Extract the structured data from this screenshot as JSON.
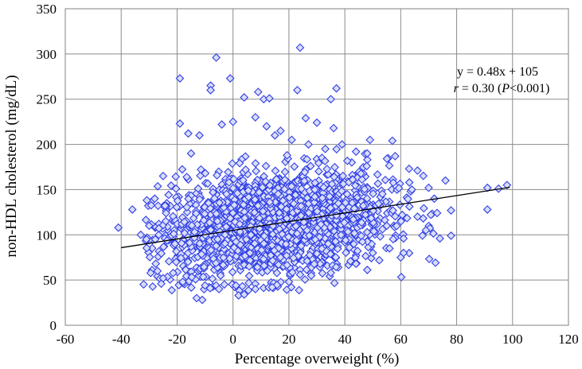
{
  "chart_data": {
    "type": "scatter",
    "title": "",
    "xlabel": "Percentage overweight (%)",
    "ylabel": "non-HDL cholesterol (mg/dL)",
    "xlim": [
      -60,
      120
    ],
    "ylim": [
      0,
      350
    ],
    "x_ticks": [
      "-60",
      "-40",
      "-20",
      "0",
      "20",
      "40",
      "60",
      "80",
      "100",
      "120"
    ],
    "y_ticks": [
      "0",
      "50",
      "100",
      "150",
      "200",
      "250",
      "300",
      "350"
    ],
    "grid": true,
    "marker": "diamond",
    "marker_color": "#2f3fe6",
    "line_color": "#000000",
    "annotation": {
      "equation": "y = 0.48x + 105",
      "r_symbol": "r",
      "r_text": " = 0.30 (",
      "p_symbol": "P",
      "p_text": "<0.001)"
    },
    "trendline": {
      "slope": 0.48,
      "intercept": 105,
      "x_range": [
        -40,
        99
      ]
    },
    "outliers": [
      {
        "x": -41,
        "y": 108
      },
      {
        "x": -36,
        "y": 128
      },
      {
        "x": -19,
        "y": 273
      },
      {
        "x": -8,
        "y": 265
      },
      {
        "x": -8,
        "y": 260
      },
      {
        "x": -6,
        "y": 296
      },
      {
        "x": -1,
        "y": 273
      },
      {
        "x": 24,
        "y": 307
      },
      {
        "x": 23,
        "y": 260
      },
      {
        "x": 37,
        "y": 262
      },
      {
        "x": 35,
        "y": 250
      },
      {
        "x": 9,
        "y": 258
      },
      {
        "x": 4,
        "y": 252
      },
      {
        "x": 11,
        "y": 250
      },
      {
        "x": 13,
        "y": 251
      },
      {
        "x": 26,
        "y": 229
      },
      {
        "x": 30,
        "y": 224
      },
      {
        "x": 36,
        "y": 218
      },
      {
        "x": 49,
        "y": 205
      },
      {
        "x": 57,
        "y": 204
      },
      {
        "x": -19,
        "y": 223
      },
      {
        "x": -16,
        "y": 212
      },
      {
        "x": -13,
        "y": 30
      },
      {
        "x": -11,
        "y": 28
      },
      {
        "x": 2,
        "y": 33
      },
      {
        "x": 4,
        "y": 34
      },
      {
        "x": 91,
        "y": 152
      },
      {
        "x": 95,
        "y": 151
      },
      {
        "x": 98,
        "y": 155
      },
      {
        "x": 91,
        "y": 128
      },
      {
        "x": 78,
        "y": 127
      },
      {
        "x": 78,
        "y": 99
      },
      {
        "x": 74,
        "y": 96
      },
      {
        "x": 69,
        "y": 105
      },
      {
        "x": 76,
        "y": 160
      },
      {
        "x": 72,
        "y": 140
      },
      {
        "x": 63,
        "y": 173
      },
      {
        "x": 66,
        "y": 171
      },
      {
        "x": 61,
        "y": 96
      },
      {
        "x": 60,
        "y": 75
      },
      {
        "x": 61,
        "y": 80
      },
      {
        "x": 48,
        "y": 190
      },
      {
        "x": 58,
        "y": 187
      },
      {
        "x": 64,
        "y": 150
      },
      {
        "x": 70,
        "y": 152
      },
      {
        "x": 55,
        "y": 110
      },
      {
        "x": 66,
        "y": 120
      },
      {
        "x": 39,
        "y": 200
      },
      {
        "x": 44,
        "y": 192
      },
      {
        "x": 33,
        "y": 195
      },
      {
        "x": 27,
        "y": 200
      },
      {
        "x": 21,
        "y": 205
      },
      {
        "x": 15,
        "y": 210
      },
      {
        "x": 8,
        "y": 230
      },
      {
        "x": 12,
        "y": 220
      },
      {
        "x": 17,
        "y": 215
      },
      {
        "x": 0,
        "y": 225
      },
      {
        "x": -4,
        "y": 222
      },
      {
        "x": -12,
        "y": 210
      },
      {
        "x": -15,
        "y": 190
      },
      {
        "x": -25,
        "y": 165
      },
      {
        "x": -28,
        "y": 140
      },
      {
        "x": -30,
        "y": 110
      },
      {
        "x": -31,
        "y": 95
      },
      {
        "x": -33,
        "y": 100
      },
      {
        "x": -27,
        "y": 60
      },
      {
        "x": -25,
        "y": 52
      },
      {
        "x": -18,
        "y": 48
      },
      {
        "x": -10,
        "y": 44
      },
      {
        "x": -5,
        "y": 40
      },
      {
        "x": 8,
        "y": 40
      },
      {
        "x": 14,
        "y": 42
      },
      {
        "x": 20,
        "y": 48
      },
      {
        "x": 28,
        "y": 55
      },
      {
        "x": 35,
        "y": 58
      },
      {
        "x": 44,
        "y": 68
      },
      {
        "x": 50,
        "y": 80
      },
      {
        "x": 56,
        "y": 85
      }
    ],
    "cloud": {
      "count": 2000,
      "x_center": 13,
      "x_spread": 21,
      "y_center": 111,
      "y_spread": 29,
      "x_min": -32,
      "x_max": 75,
      "y_min": 38,
      "y_max": 200
    }
  }
}
